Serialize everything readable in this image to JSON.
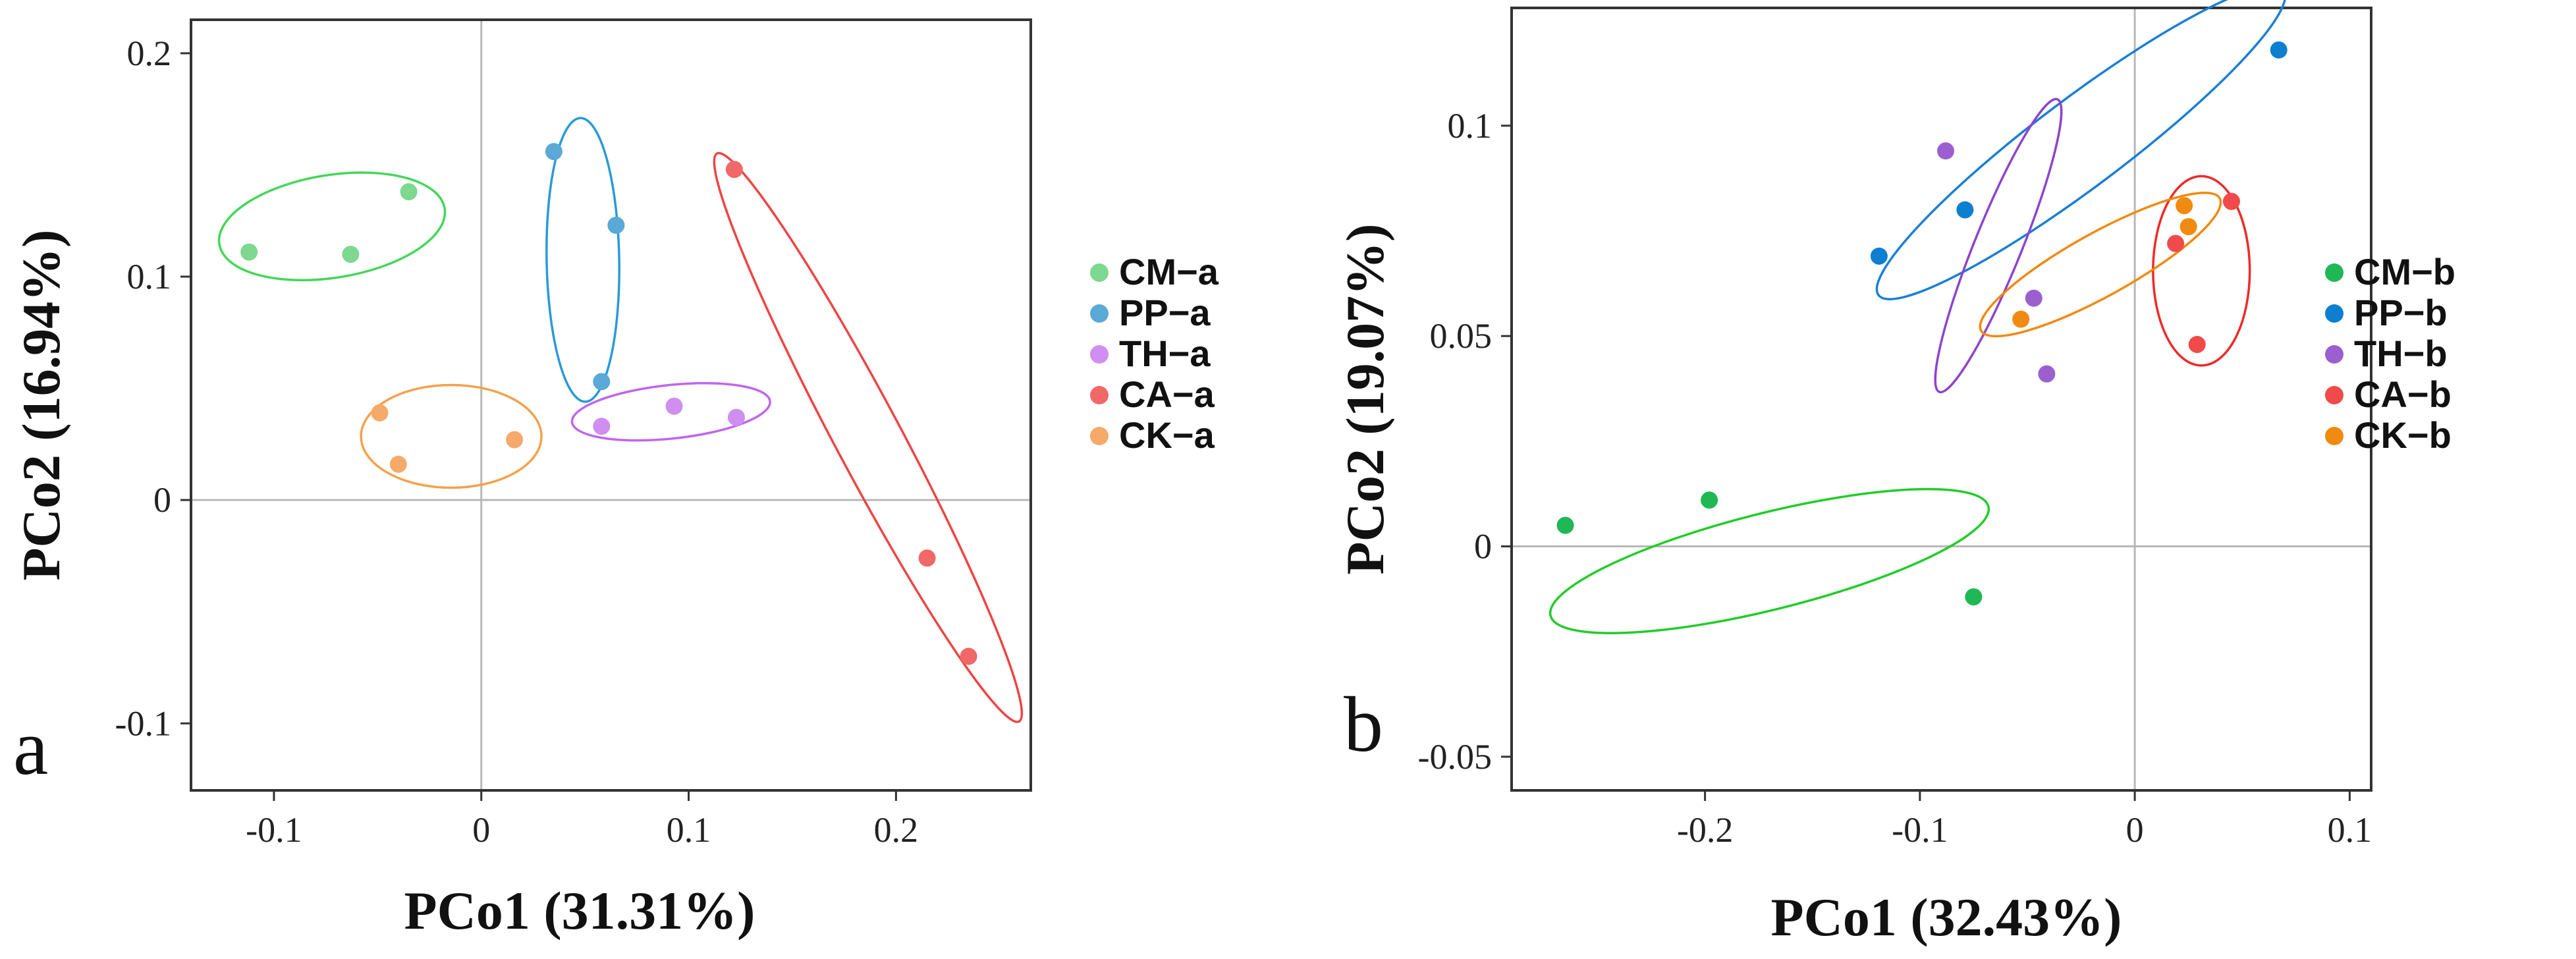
{
  "chart_data": [
    {
      "type": "scatter",
      "panel_label": "a",
      "xlabel": "PCo1 (31.31%)",
      "ylabel": "PCo2 (16.94%)",
      "xlim": [
        -0.14,
        0.265
      ],
      "ylim": [
        -0.13,
        0.215
      ],
      "xticks": [
        -0.1,
        0,
        0.1,
        0.2
      ],
      "xtick_labels": [
        "-0.1",
        "0",
        "0.1",
        "0.2"
      ],
      "yticks": [
        -0.1,
        0,
        0.1,
        0.2
      ],
      "ytick_labels": [
        "-0.1",
        "0",
        "0.1",
        "0.2"
      ],
      "zero_lines": true,
      "legend_position": "right",
      "series": [
        {
          "name": "CM−a",
          "color": "#7ed88f",
          "points": [
            [
              -0.112,
              0.111
            ],
            [
              -0.063,
              0.11
            ],
            [
              -0.035,
              0.138
            ]
          ],
          "ellipse": {
            "cx": -0.072,
            "cy": 0.1225,
            "rx": 0.055,
            "ry": 0.023,
            "angle": 9,
            "color": "#45d65a"
          }
        },
        {
          "name": "PP−a",
          "color": "#5aa9d6",
          "points": [
            [
              0.035,
              0.156
            ],
            [
              0.065,
              0.123
            ],
            [
              0.058,
              0.053
            ]
          ],
          "ellipse": {
            "cx": 0.049,
            "cy": 0.1075,
            "rx": 0.0175,
            "ry": 0.0635,
            "angle": 1,
            "color": "#2a9ad8"
          }
        },
        {
          "name": "TH−a",
          "color": "#cf8ef0",
          "points": [
            [
              0.058,
              0.033
            ],
            [
              0.093,
              0.042
            ],
            [
              0.123,
              0.037
            ]
          ],
          "ellipse": {
            "cx": 0.0915,
            "cy": 0.0395,
            "rx": 0.048,
            "ry": 0.012,
            "angle": 6,
            "color": "#c066ee"
          }
        },
        {
          "name": "CA−a",
          "color": "#f06868",
          "points": [
            [
              0.122,
              0.148
            ],
            [
              0.215,
              -0.026
            ],
            [
              0.235,
              -0.07
            ]
          ],
          "ellipse": {
            "cx": 0.1865,
            "cy": 0.028,
            "rx": 0.016,
            "ry": 0.144,
            "angle": 28,
            "color": "#ee4444"
          }
        },
        {
          "name": "CK−a",
          "color": "#f6aa6a",
          "points": [
            [
              -0.049,
              0.039
            ],
            [
              -0.04,
              0.016
            ],
            [
              0.016,
              0.027
            ]
          ],
          "ellipse": {
            "cx": -0.0145,
            "cy": 0.0285,
            "rx": 0.0435,
            "ry": 0.023,
            "angle": 0,
            "color": "#f4a24a"
          }
        }
      ]
    },
    {
      "type": "scatter",
      "panel_label": "b",
      "xlabel": "PCo1 (32.43%)",
      "ylabel": "PCo2 (19.07%)",
      "xlim": [
        -0.29,
        0.11
      ],
      "ylim": [
        -0.058,
        0.128
      ],
      "xticks": [
        -0.2,
        -0.1,
        0,
        0.1
      ],
      "xtick_labels": [
        "-0.2",
        "-0.1",
        "0",
        "0.1"
      ],
      "yticks": [
        -0.05,
        0,
        0.05,
        0.1
      ],
      "ytick_labels": [
        "-0.05",
        "0",
        "0.05",
        "0.1"
      ],
      "zero_lines": true,
      "legend_position": "right",
      "series": [
        {
          "name": "CM−b",
          "color": "#1fb855",
          "points": [
            [
              -0.265,
              0.005
            ],
            [
              -0.198,
              0.011
            ],
            [
              -0.075,
              -0.012
            ]
          ],
          "ellipse": {
            "cx": -0.17,
            "cy": -0.0035,
            "rx": 0.105,
            "ry": 0.0115,
            "angle": 14,
            "color": "#22cc2a"
          }
        },
        {
          "name": "PP−b",
          "color": "#0d7fd0",
          "points": [
            [
              -0.119,
              0.069
            ],
            [
              -0.079,
              0.08
            ],
            [
              0.067,
              0.118
            ]
          ],
          "ellipse": {
            "cx": -0.025,
            "cy": 0.096,
            "rx": 0.118,
            "ry": 0.0105,
            "angle": 37,
            "color": "#1a7fd4"
          }
        },
        {
          "name": "TH−b",
          "color": "#9b5fd0",
          "points": [
            [
              -0.088,
              0.094
            ],
            [
              -0.047,
              0.059
            ],
            [
              -0.041,
              0.041
            ]
          ],
          "ellipse": {
            "cx": -0.0635,
            "cy": 0.0715,
            "rx": 0.011,
            "ry": 0.0375,
            "angle": -22,
            "color": "#8e44cc"
          }
        },
        {
          "name": "CA−b",
          "color": "#f04a4a",
          "points": [
            [
              0.029,
              0.048
            ],
            [
              0.019,
              0.072
            ],
            [
              0.045,
              0.082
            ]
          ],
          "ellipse": {
            "cx": 0.031,
            "cy": 0.0655,
            "rx": 0.0225,
            "ry": 0.0225,
            "angle": 0,
            "color": "#ee2a2a"
          }
        },
        {
          "name": "CK−b",
          "color": "#f08a10",
          "points": [
            [
              -0.053,
              0.054
            ],
            [
              0.023,
              0.081
            ],
            [
              0.025,
              0.076
            ]
          ],
          "ellipse": {
            "cx": -0.016,
            "cy": 0.067,
            "rx": 0.0635,
            "ry": 0.0075,
            "angle": 29,
            "color": "#f08a10"
          }
        }
      ]
    }
  ]
}
